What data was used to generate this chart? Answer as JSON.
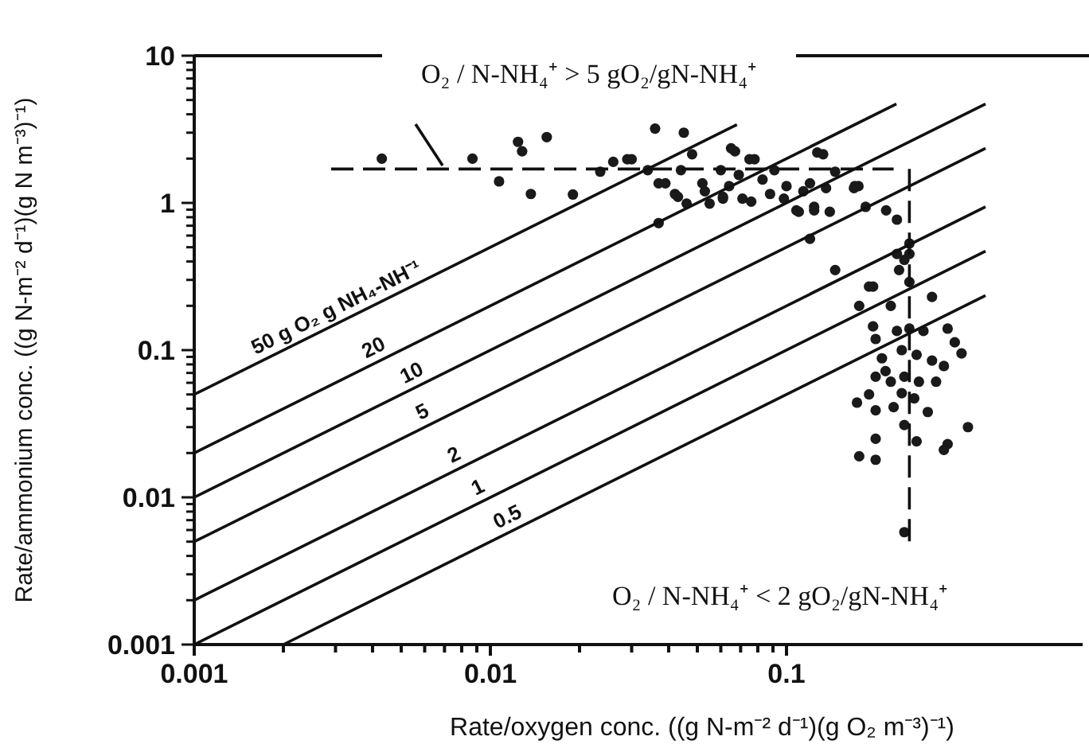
{
  "chart_data": {
    "type": "scatter",
    "xlabel": "Rate/oxygen conc. ((g N-m⁻² d⁻¹)(g O₂  m⁻³)⁻¹)",
    "ylabel": "Rate/ammonium conc. ((g N-m⁻² d⁻¹)(g N m⁻³)⁻¹)",
    "log": "xy",
    "xlim": [
      0.001,
      1
    ],
    "ylim": [
      0.001,
      10
    ],
    "xticks": [
      0.001,
      {
        "value": 0.002,
        "label": null
      },
      {
        "value": 0.003,
        "label": null
      },
      {
        "value": 0.004,
        "label": null
      },
      {
        "value": 0.005,
        "label": null
      },
      {
        "value": 0.006,
        "label": null
      },
      {
        "value": 0.007,
        "label": null
      },
      {
        "value": 0.008,
        "label": null
      },
      {
        "value": 0.009,
        "label": null
      },
      0.01,
      {
        "value": 0.02,
        "label": null
      },
      {
        "value": 0.03,
        "label": null
      },
      {
        "value": 0.04,
        "label": null
      },
      {
        "value": 0.05,
        "label": null
      },
      {
        "value": 0.06,
        "label": null
      },
      {
        "value": 0.07,
        "label": null
      },
      {
        "value": 0.08,
        "label": null
      },
      {
        "value": 0.09,
        "label": null
      },
      0.1
    ],
    "yticks": [
      0.001,
      {
        "value": 0.002,
        "label": null
      },
      {
        "value": 0.003,
        "label": null
      },
      {
        "value": 0.004,
        "label": null
      },
      {
        "value": 0.005,
        "label": null
      },
      {
        "value": 0.006,
        "label": null
      },
      {
        "value": 0.007,
        "label": null
      },
      {
        "value": 0.008,
        "label": null
      },
      {
        "value": 0.009,
        "label": null
      },
      0.01,
      {
        "value": 0.02,
        "label": null
      },
      {
        "value": 0.03,
        "label": null
      },
      {
        "value": 0.04,
        "label": null
      },
      {
        "value": 0.05,
        "label": null
      },
      {
        "value": 0.06,
        "label": null
      },
      {
        "value": 0.07,
        "label": null
      },
      {
        "value": 0.08,
        "label": null
      },
      {
        "value": 0.09,
        "label": null
      },
      0.1,
      {
        "value": 0.2,
        "label": null
      },
      {
        "value": 0.3,
        "label": null
      },
      {
        "value": 0.4,
        "label": null
      },
      {
        "value": 0.5,
        "label": null
      },
      {
        "value": 0.6,
        "label": null
      },
      {
        "value": 0.7,
        "label": null
      },
      {
        "value": 0.8,
        "label": null
      },
      {
        "value": 0.9,
        "label": null
      },
      1,
      {
        "value": 2,
        "label": null
      },
      {
        "value": 3,
        "label": null
      },
      {
        "value": 4,
        "label": null
      },
      {
        "value": 5,
        "label": null
      },
      {
        "value": 6,
        "label": null
      },
      {
        "value": 7,
        "label": null
      },
      {
        "value": 8,
        "label": null
      },
      {
        "value": 9,
        "label": null
      },
      10
    ],
    "grid": false,
    "annotations": [
      "O₂ / N-NH₄⁺ > 5 gO₂/gN-NH₄⁺",
      "O₂ / N-NH₄⁺ < 2 gO₂/gN-NH₄⁺"
    ],
    "series": [
      {
        "marker": "circle",
        "color": "#1a1a1a",
        "x": [
          0.0043,
          0.0087,
          0.0107,
          0.0124,
          0.0128,
          0.0155,
          0.0137,
          0.019,
          0.0235,
          0.036,
          0.045,
          0.026,
          0.029,
          0.03,
          0.034,
          0.039,
          0.042,
          0.046,
          0.044,
          0.048,
          0.053,
          0.055,
          0.06,
          0.061,
          0.064,
          0.067,
          0.069,
          0.071,
          0.076,
          0.078,
          0.083,
          0.088,
          0.091,
          0.098,
          0.1,
          0.108,
          0.114,
          0.12,
          0.124,
          0.133,
          0.14,
          0.136,
          0.146,
          0.169,
          0.175,
          0.185,
          0.217,
          0.236,
          0.12,
          0.037,
          0.146,
          0.19,
          0.236,
          0.25,
          0.24,
          0.26,
          0.31,
          0.037,
          0.043,
          0.052,
          0.061,
          0.065,
          0.075,
          0.11,
          0.127,
          0.124,
          0.17,
          0.196,
          0.176,
          0.225,
          0.196,
          0.2,
          0.236,
          0.26,
          0.29,
          0.35,
          0.37,
          0.39,
          0.21,
          0.245,
          0.275,
          0.31,
          0.34,
          0.216,
          0.25,
          0.28,
          0.32,
          0.225,
          0.2,
          0.245,
          0.27,
          0.173,
          0.19,
          0.2,
          0.23,
          0.3,
          0.25,
          0.41,
          0.2,
          0.275,
          0.35,
          0.34,
          0.176,
          0.2,
          0.25,
          0.26,
          0.26
        ],
        "values": [
          2.0,
          2.0,
          1.4,
          2.6,
          2.24,
          2.8,
          1.15,
          1.14,
          1.63,
          3.2,
          3.0,
          1.9,
          1.98,
          1.98,
          1.67,
          1.36,
          1.15,
          0.99,
          1.67,
          2.14,
          1.2,
          0.99,
          1.67,
          1.07,
          1.3,
          2.24,
          1.55,
          1.07,
          1.02,
          1.98,
          1.44,
          1.15,
          1.67,
          1.07,
          1.3,
          0.89,
          1.2,
          1.36,
          0.89,
          2.14,
          0.87,
          1.26,
          1.63,
          1.26,
          1.3,
          0.94,
          0.89,
          0.77,
          0.57,
          0.73,
          0.35,
          0.27,
          0.45,
          0.41,
          0.35,
          0.29,
          0.23,
          1.36,
          1.1,
          1.36,
          1.1,
          2.35,
          1.98,
          0.87,
          2.2,
          0.94,
          1.3,
          0.27,
          0.2,
          0.2,
          0.145,
          0.119,
          0.135,
          0.14,
          0.135,
          0.14,
          0.113,
          0.095,
          0.088,
          0.1,
          0.093,
          0.085,
          0.078,
          0.072,
          0.066,
          0.061,
          0.061,
          0.061,
          0.066,
          0.051,
          0.047,
          0.044,
          0.05,
          0.039,
          0.041,
          0.038,
          0.031,
          0.03,
          0.025,
          0.024,
          0.023,
          0.021,
          0.019,
          0.018,
          0.0058,
          0.53,
          0.45
        ]
      },
      {
        "type": "line",
        "name": "50 g O₂ g NH₄-NH⁻¹",
        "color": "#111111",
        "x": [
          0.001,
          0.068
        ],
        "values": [
          0.05,
          3.4
        ]
      },
      {
        "type": "line",
        "name": "20",
        "color": "#111111",
        "x": [
          0.001,
          0.235
        ],
        "values": [
          0.02,
          4.7
        ]
      },
      {
        "type": "line",
        "name": "10",
        "color": "#111111",
        "x": [
          0.001,
          0.47
        ],
        "values": [
          0.01,
          4.7
        ]
      },
      {
        "type": "line",
        "name": "5",
        "color": "#111111",
        "x": [
          0.001,
          0.47
        ],
        "values": [
          0.005,
          2.35
        ]
      },
      {
        "type": "line",
        "name": "2",
        "color": "#111111",
        "x": [
          0.001,
          0.47
        ],
        "values": [
          0.002,
          0.94
        ]
      },
      {
        "type": "line",
        "name": "1",
        "color": "#111111",
        "x": [
          0.001,
          0.47
        ],
        "values": [
          0.001,
          0.47
        ]
      },
      {
        "type": "line",
        "name": "0.5",
        "color": "#111111",
        "x": [
          0.002,
          0.47
        ],
        "values": [
          0.001,
          0.235
        ]
      },
      {
        "type": "line",
        "line_style": "dashed",
        "color": "#111111",
        "x": [
          0.0029,
          0.23
        ],
        "values": [
          1.7,
          1.7
        ]
      },
      {
        "type": "line",
        "line_style": "dashed",
        "color": "#111111",
        "x": [
          0.26,
          0.26
        ],
        "values": [
          1.7,
          0.005
        ]
      }
    ]
  }
}
